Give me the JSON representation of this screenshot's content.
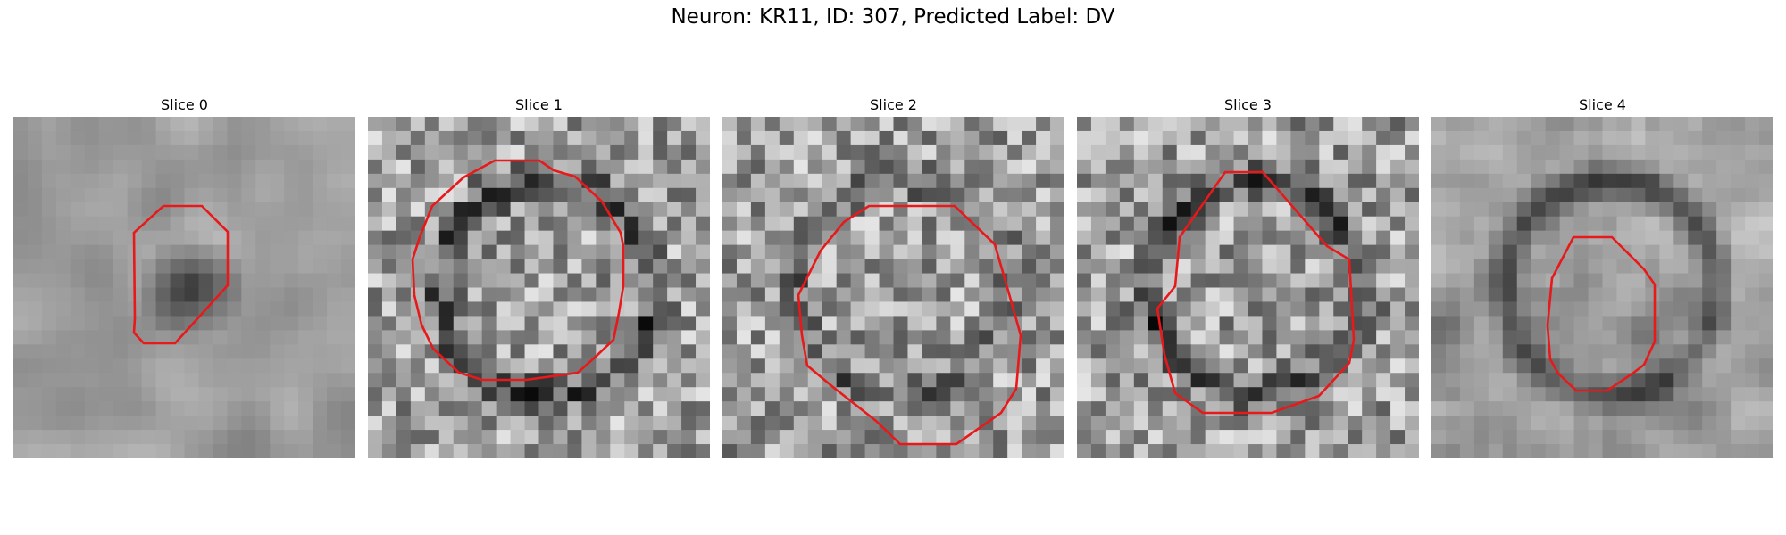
{
  "figure": {
    "title": "Neuron: KR11, ID: 307, Predicted Label: DV",
    "roi_color": "#e8191a"
  },
  "panels": [
    {
      "title": "Slice 0",
      "seed": 11,
      "blur": 2,
      "ring": 0,
      "dark_center": 1
    },
    {
      "title": "Slice 1",
      "seed": 23,
      "blur": 0,
      "ring": 1,
      "dark_center": 0
    },
    {
      "title": "Slice 2",
      "seed": 37,
      "blur": 0,
      "ring": 0.6,
      "dark_center": 0
    },
    {
      "title": "Slice 3",
      "seed": 41,
      "blur": 0,
      "ring": 1,
      "dark_center": 0
    },
    {
      "title": "Slice 4",
      "seed": 53,
      "blur": 1,
      "ring": 1,
      "dark_center": 0
    }
  ]
}
